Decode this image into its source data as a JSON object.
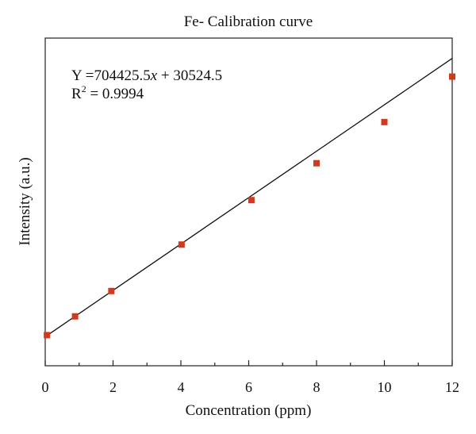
{
  "chart_data": {
    "type": "scatter",
    "title": "Fe- Calibration curve",
    "xlabel": "Concentration (ppm)",
    "ylabel": "Intensity (a.u.)",
    "xlim": [
      0,
      12
    ],
    "ylim": [
      -850000,
      9100000
    ],
    "x_ticks": [
      0,
      2,
      4,
      6,
      8,
      10,
      12
    ],
    "x_tick_labels": [
      "0",
      "2",
      "4",
      "6",
      "8",
      "10",
      "12"
    ],
    "y_tick_labels_shown": false,
    "grid": false,
    "legend": "none",
    "series": [
      {
        "color": "#d13a1e",
        "marker": "square",
        "points": [
          {
            "x": 0.05,
            "y": 80000
          },
          {
            "x": 0.88,
            "y": 650000
          },
          {
            "x": 1.95,
            "y": 1420000
          },
          {
            "x": 4.02,
            "y": 2830000
          },
          {
            "x": 6.08,
            "y": 4180000
          },
          {
            "x": 8.0,
            "y": 5300000
          },
          {
            "x": 10.0,
            "y": 6550000
          },
          {
            "x": 12.0,
            "y": 7930000
          }
        ]
      }
    ],
    "fit": {
      "slope": 704425.5,
      "intercept": 30524.5,
      "x_range": [
        0,
        12
      ],
      "color": "#111111"
    },
    "annotations": {
      "equation_prefix": "Y =704425.5",
      "equation_var": "x",
      "equation_suffix": " + 30524.5",
      "r2_base": "R",
      "r2_sup": "2",
      "r2_rest": " = 0.9994"
    }
  }
}
